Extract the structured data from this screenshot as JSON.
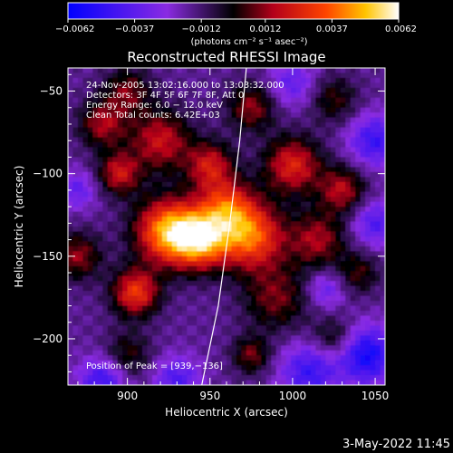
{
  "chart_data": {
    "type": "heatmap",
    "title": "Reconstructed RHESSI Image",
    "xlabel": "Heliocentric X (arcsec)",
    "ylabel": "Heliocentric Y (arcsec)",
    "xlim": [
      864,
      1056
    ],
    "ylim": [
      -228,
      -36
    ],
    "x_ticks": [
      900,
      950,
      1000,
      1050
    ],
    "x_tick_labels": [
      "900",
      "950",
      "1000",
      "1050"
    ],
    "y_ticks": [
      -50,
      -100,
      -150,
      -200
    ],
    "y_tick_labels": [
      "−50",
      "−100",
      "−150",
      "−200"
    ],
    "colorbar": {
      "range": [
        -0.0062,
        0.0062
      ],
      "ticks": [
        -0.0062,
        -0.0037,
        -0.0012,
        0.0012,
        0.0037,
        0.0062
      ],
      "tick_labels": [
        "−0.0062",
        "−0.0037",
        "−0.0012",
        "0.0012",
        "0.0037",
        "0.0062"
      ],
      "unit_label": "(photons cm⁻² s⁻¹ asec⁻²)"
    },
    "annotations": [
      "24-Nov-2005 13:02:16.000 to 13:03:32.000",
      "Detectors: 3F 4F 5F 6F 7F 8F, Att 0",
      "Energy Range: 6.0 − 12.0 keV",
      "Clean    Total counts: 6.42E+03"
    ],
    "peak_label": "Position of Peak = [939,−136]",
    "peak_position": [
      939,
      -136
    ],
    "limb_curve": [
      [
        945,
        -228
      ],
      [
        955,
        -180
      ],
      [
        962,
        -130
      ],
      [
        968,
        -80
      ],
      [
        972,
        -36
      ]
    ],
    "sources": [
      {
        "x": 925,
        "y": -135,
        "value": 0.0062,
        "spread": 14
      },
      {
        "x": 945,
        "y": -140,
        "value": 0.0055,
        "spread": 12
      },
      {
        "x": 975,
        "y": -138,
        "value": 0.0052,
        "spread": 14
      },
      {
        "x": 960,
        "y": -120,
        "value": 0.004,
        "spread": 12
      },
      {
        "x": 905,
        "y": -172,
        "value": 0.0045,
        "spread": 10
      },
      {
        "x": 895,
        "y": -100,
        "value": 0.0035,
        "spread": 9
      },
      {
        "x": 885,
        "y": -70,
        "value": 0.003,
        "spread": 10
      },
      {
        "x": 920,
        "y": -80,
        "value": 0.0035,
        "spread": 13
      },
      {
        "x": 950,
        "y": -95,
        "value": 0.0035,
        "spread": 10
      },
      {
        "x": 1000,
        "y": -95,
        "value": 0.004,
        "spread": 12
      },
      {
        "x": 1030,
        "y": -110,
        "value": 0.0032,
        "spread": 10
      },
      {
        "x": 1015,
        "y": -140,
        "value": 0.003,
        "spread": 12
      },
      {
        "x": 990,
        "y": -175,
        "value": 0.0025,
        "spread": 14
      },
      {
        "x": 1040,
        "y": -160,
        "value": 0.002,
        "spread": 9
      },
      {
        "x": 900,
        "y": -210,
        "value": 0.002,
        "spread": 10
      },
      {
        "x": 975,
        "y": -210,
        "value": 0.0025,
        "spread": 8
      },
      {
        "x": 1025,
        "y": -200,
        "value": 0.002,
        "spread": 9
      },
      {
        "x": 900,
        "y": -50,
        "value": 0.0025,
        "spread": 10
      },
      {
        "x": 975,
        "y": -60,
        "value": 0.0028,
        "spread": 10
      },
      {
        "x": 1025,
        "y": -55,
        "value": 0.002,
        "spread": 10
      },
      {
        "x": 870,
        "y": -150,
        "value": 0.0028,
        "spread": 10
      },
      {
        "x": 1050,
        "y": -80,
        "value": -0.003,
        "spread": 11
      },
      {
        "x": 1050,
        "y": -130,
        "value": -0.0025,
        "spread": 10
      },
      {
        "x": 1045,
        "y": -210,
        "value": -0.004,
        "spread": 12
      },
      {
        "x": 885,
        "y": -225,
        "value": -0.003,
        "spread": 10
      },
      {
        "x": 930,
        "y": -225,
        "value": -0.0025,
        "spread": 10
      },
      {
        "x": 1010,
        "y": -220,
        "value": -0.003,
        "spread": 12
      },
      {
        "x": 1000,
        "y": -45,
        "value": -0.002,
        "spread": 10
      },
      {
        "x": 870,
        "y": -110,
        "value": -0.002,
        "spread": 8
      },
      {
        "x": 1020,
        "y": -170,
        "value": -0.002,
        "spread": 8
      }
    ]
  },
  "footer": {
    "date_stamp": "3-May-2022 11:45"
  }
}
